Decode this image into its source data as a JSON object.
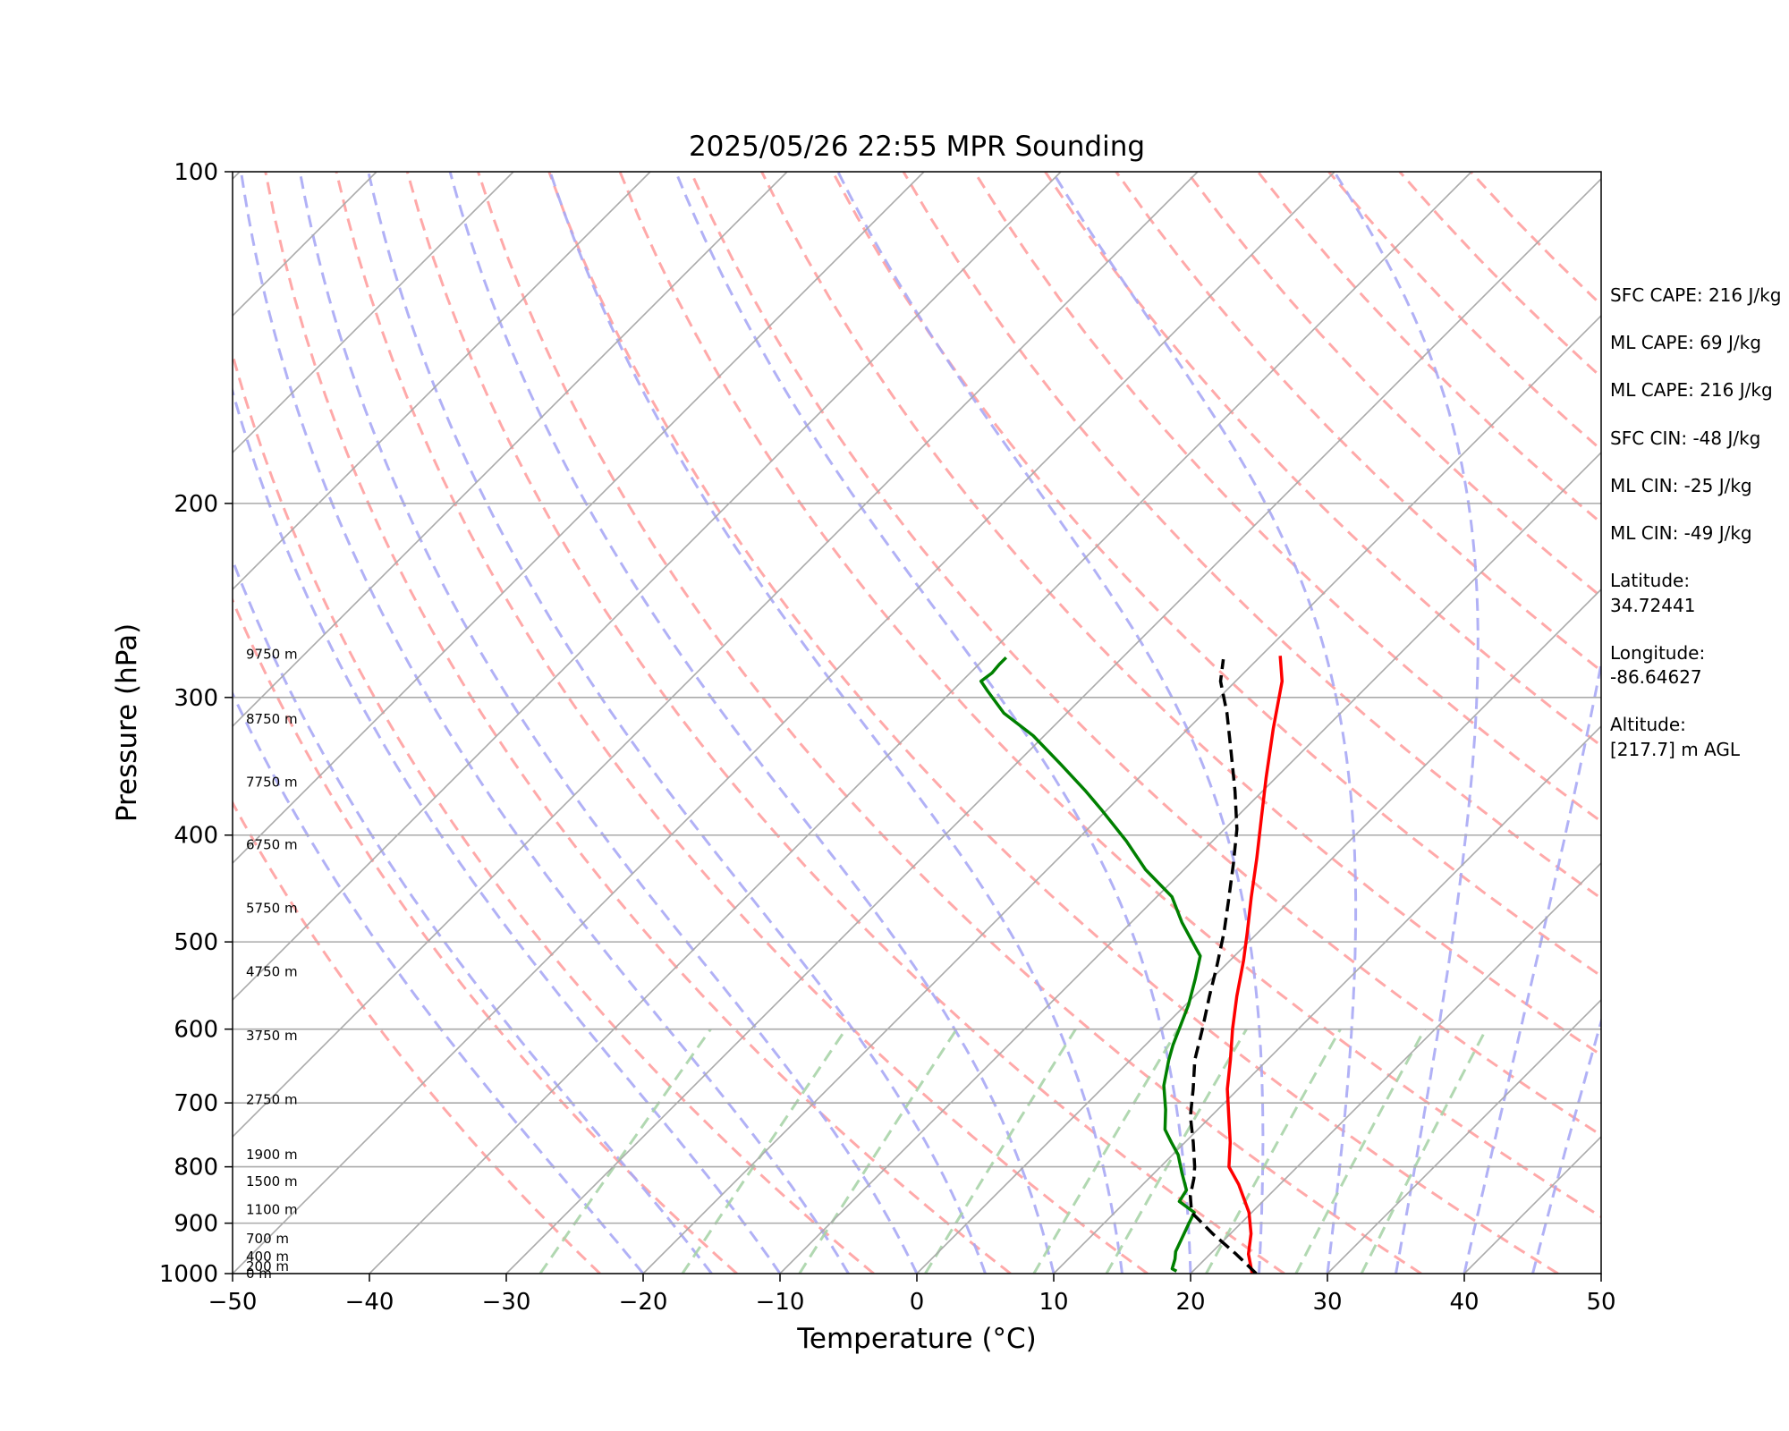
{
  "chart_data": {
    "type": "line",
    "title": "2025/05/26 22:55 MPR Sounding",
    "xlabel": "Temperature (°C)",
    "ylabel": "Pressure (hPa)",
    "xlim": [
      -50,
      50
    ],
    "ylim": [
      1000,
      100
    ],
    "y_scale": "log",
    "skew": true,
    "grid": true,
    "x_ticks": [
      -50,
      -40,
      -30,
      -20,
      -10,
      0,
      10,
      20,
      30,
      40,
      50
    ],
    "x_tick_labels": [
      "−50",
      "−40",
      "−30",
      "−20",
      "−10",
      "0",
      "10",
      "20",
      "30",
      "40",
      "50"
    ],
    "y_ticks": [
      100,
      200,
      300,
      400,
      500,
      600,
      700,
      800,
      900,
      1000
    ],
    "y_tick_labels": [
      "100",
      "200",
      "300",
      "400",
      "500",
      "600",
      "700",
      "800",
      "900",
      "1000"
    ],
    "series": [
      {
        "name": "",
        "color": "#ff0000",
        "style": "solid",
        "points": [
          [
            24.5,
            1000
          ],
          [
            22.8,
            960
          ],
          [
            21.5,
            920
          ],
          [
            19.8,
            880
          ],
          [
            17.0,
            830
          ],
          [
            15.0,
            800
          ],
          [
            13.3,
            760
          ],
          [
            11.3,
            720
          ],
          [
            9.2,
            680
          ],
          [
            7.3,
            640
          ],
          [
            5.2,
            600
          ],
          [
            3.1,
            560
          ],
          [
            1.0,
            520
          ],
          [
            -0.8,
            490
          ],
          [
            -3.1,
            455
          ],
          [
            -5.5,
            420
          ],
          [
            -8.2,
            385
          ],
          [
            -10.7,
            355
          ],
          [
            -13.8,
            320
          ],
          [
            -16.6,
            290
          ],
          [
            -18.6,
            275
          ]
        ]
      },
      {
        "name": "",
        "color": "#008000",
        "style": "solid",
        "points": [
          [
            18.8,
            995
          ],
          [
            18.3,
            990
          ],
          [
            17.8,
            970
          ],
          [
            17.3,
            955
          ],
          [
            16.2,
            900
          ],
          [
            15.8,
            880
          ],
          [
            13.9,
            860
          ],
          [
            13.6,
            840
          ],
          [
            12.0,
            810
          ],
          [
            10.4,
            780
          ],
          [
            9.0,
            760
          ],
          [
            7.6,
            740
          ],
          [
            6.2,
            710
          ],
          [
            4.3,
            675
          ],
          [
            2.8,
            640
          ],
          [
            2.0,
            620
          ],
          [
            1.3,
            600
          ],
          [
            0.2,
            570
          ],
          [
            -1.2,
            540
          ],
          [
            -2.5,
            515
          ],
          [
            -4.1,
            500
          ],
          [
            -6.3,
            480
          ],
          [
            -8.9,
            455
          ],
          [
            -12.8,
            430
          ],
          [
            -16.3,
            405
          ],
          [
            -20.3,
            380
          ],
          [
            -22.9,
            365
          ],
          [
            -26.7,
            345
          ],
          [
            -30.8,
            325
          ],
          [
            -34.6,
            310
          ],
          [
            -37.4,
            296
          ],
          [
            -38.6,
            290
          ],
          [
            -38.4,
            285
          ],
          [
            -38.5,
            280
          ],
          [
            -38.5,
            276
          ]
        ]
      },
      {
        "name": "",
        "color": "#000000",
        "style": "dashed",
        "points": [
          [
            24.8,
            1000
          ],
          [
            21.9,
            960
          ],
          [
            18.7,
            920
          ],
          [
            15.6,
            880
          ],
          [
            14.3,
            850
          ],
          [
            13.3,
            820
          ],
          [
            12.5,
            800
          ],
          [
            10.6,
            760
          ],
          [
            8.5,
            720
          ],
          [
            6.7,
            680
          ],
          [
            4.7,
            640
          ],
          [
            3.0,
            600
          ],
          [
            1.1,
            560
          ],
          [
            -0.6,
            525
          ],
          [
            -2.5,
            490
          ],
          [
            -4.4,
            460
          ],
          [
            -6.8,
            425
          ],
          [
            -9.1,
            395
          ],
          [
            -12.0,
            365
          ],
          [
            -15.3,
            335
          ],
          [
            -18.3,
            310
          ],
          [
            -21.1,
            290
          ],
          [
            -22.5,
            277
          ]
        ]
      }
    ],
    "height_labels": [
      "9750 m",
      "8750 m",
      "7750 m",
      "6750 m",
      "5750 m",
      "4750 m",
      "3750 m",
      "2750 m",
      "1900 m",
      "1500 m",
      "1100 m",
      "700 m",
      "400 m",
      "200 m",
      "0 m"
    ],
    "height_label_pressures": [
      274,
      314,
      358,
      408,
      466,
      532,
      608,
      695,
      780,
      825,
      875,
      930,
      965,
      985,
      1000
    ]
  },
  "info": {
    "sfc_cape": "SFC CAPE: 216 J/kg",
    "ml_cape_1": "ML CAPE: 69 J/kg",
    "ml_cape_2": "ML CAPE: 216 J/kg",
    "sfc_cin": "SFC CIN: -48 J/kg",
    "ml_cin_1": "ML CIN: -25 J/kg",
    "ml_cin_2": "ML CIN: -49 J/kg",
    "latitude_label": "Latitude:",
    "latitude_value": "34.72441",
    "longitude_label": "Longitude:",
    "longitude_value": "-86.64627",
    "altitude_label": "Altitude:",
    "altitude_value": "[217.7] m AGL"
  },
  "colors": {
    "isotherm": "#aaaaaa",
    "dry_adiabat": "#ff9a9a",
    "moist_adiabat": "#a8a8f5",
    "mixing_ratio": "#a8d4a8"
  }
}
